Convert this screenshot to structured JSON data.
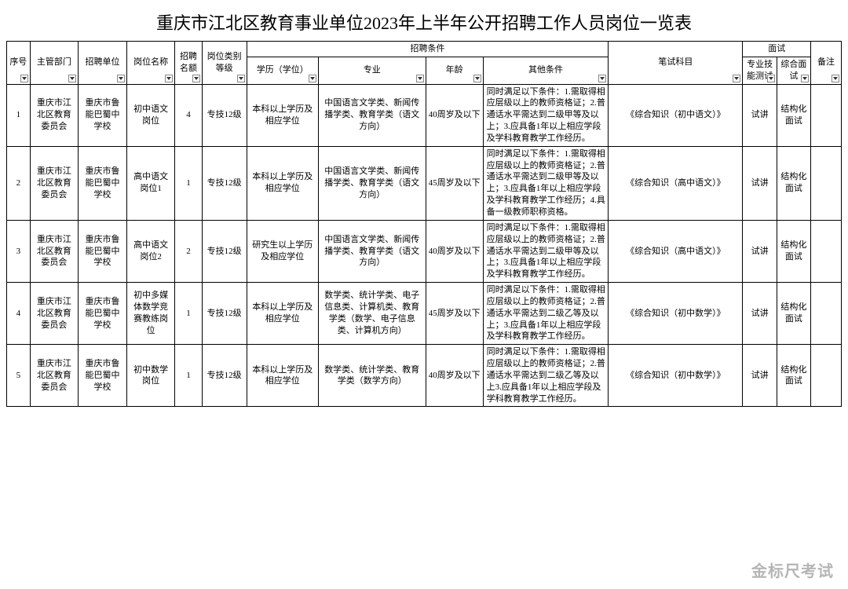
{
  "title": "重庆市江北区教育事业单位2023年上半年公开招聘工作人员岗位一览表",
  "watermark": "金标尺考试",
  "headers": {
    "seq": "序号",
    "dept": "主管部门",
    "unit": "招聘单位",
    "post": "岗位名称",
    "count": "招聘名额",
    "level": "岗位类别等级",
    "cond_group": "招聘条件",
    "edu": "学历（学位）",
    "major": "专业",
    "age": "年龄",
    "other": "其他条件",
    "exam": "笔试科目",
    "interview_group": "面试",
    "skill": "专业技能测试",
    "comp": "综合面试",
    "remark": "备注"
  },
  "col_widths": {
    "seq": 26,
    "dept": 54,
    "unit": 54,
    "post": 54,
    "count": 30,
    "level": 50,
    "edu": 80,
    "major": 120,
    "age": 64,
    "other": 140,
    "exam": 150,
    "skill": 38,
    "comp": 38,
    "remark": 34
  },
  "rows": [
    {
      "seq": "1",
      "dept": "重庆市江北区教育委员会",
      "unit": "重庆市鲁能巴蜀中学校",
      "post": "初中语文岗位",
      "count": "4",
      "level": "专技12级",
      "edu": "本科以上学历及相应学位",
      "major": "中国语言文学类、新闻传播学类、教育学类（语文方向）",
      "age": "40周岁及以下",
      "other": "同时满足以下条件：1.需取得相应层级以上的教师资格证；2.普通话水平需达到二级甲等及以上；3.应具备1年以上相应学段及学科教育教学工作经历。",
      "exam": "《综合知识（初中语文）》",
      "skill": "试讲",
      "comp": "结构化面试",
      "remark": ""
    },
    {
      "seq": "2",
      "dept": "重庆市江北区教育委员会",
      "unit": "重庆市鲁能巴蜀中学校",
      "post": "高中语文岗位1",
      "count": "1",
      "level": "专技12级",
      "edu": "本科以上学历及相应学位",
      "major": "中国语言文学类、新闻传播学类、教育学类（语文方向）",
      "age": "45周岁及以下",
      "other": "同时满足以下条件：1.需取得相应层级以上的教师资格证；2.普通话水平需达到二级甲等及以上；3.应具备1年以上相应学段及学科教育教学工作经历；4.具备一级教师职称资格。",
      "exam": "《综合知识（高中语文）》",
      "skill": "试讲",
      "comp": "结构化面试",
      "remark": ""
    },
    {
      "seq": "3",
      "dept": "重庆市江北区教育委员会",
      "unit": "重庆市鲁能巴蜀中学校",
      "post": "高中语文岗位2",
      "count": "2",
      "level": "专技12级",
      "edu": "研究生以上学历及相应学位",
      "major": "中国语言文学类、新闻传播学类、教育学类（语文方向）",
      "age": "40周岁及以下",
      "other": "同时满足以下条件：1.需取得相应层级以上的教师资格证；2.普通话水平需达到二级甲等及以上；3.应具备1年以上相应学段及学科教育教学工作经历。",
      "exam": "《综合知识（高中语文）》",
      "skill": "试讲",
      "comp": "结构化面试",
      "remark": ""
    },
    {
      "seq": "4",
      "dept": "重庆市江北区教育委员会",
      "unit": "重庆市鲁能巴蜀中学校",
      "post": "初中多媒体数学竞赛教练岗位",
      "count": "1",
      "level": "专技12级",
      "edu": "本科以上学历及相应学位",
      "major": "数学类、统计学类、电子信息类、计算机类、教育学类（数学、电子信息类、计算机方向）",
      "age": "45周岁及以下",
      "other": "同时满足以下条件：1.需取得相应层级以上的教师资格证；2.普通话水平需达到二级乙等及以上；3.应具备1年以上相应学段及学科教育教学工作经历。",
      "exam": "《综合知识（初中数学）》",
      "skill": "试讲",
      "comp": "结构化面试",
      "remark": ""
    },
    {
      "seq": "5",
      "dept": "重庆市江北区教育委员会",
      "unit": "重庆市鲁能巴蜀中学校",
      "post": "初中数学岗位",
      "count": "1",
      "level": "专技12级",
      "edu": "本科以上学历及相应学位",
      "major": "数学类、统计学类、教育学类（数学方向）",
      "age": "40周岁及以下",
      "other": "同时满足以下条件：1.需取得相应层级以上的教师资格证；2.普通话水平需达到二级乙等及以上3.应具备1年以上相应学段及学科教育教学工作经历。",
      "exam": "《综合知识（初中数学）》",
      "skill": "试讲",
      "comp": "结构化面试",
      "remark": ""
    }
  ]
}
